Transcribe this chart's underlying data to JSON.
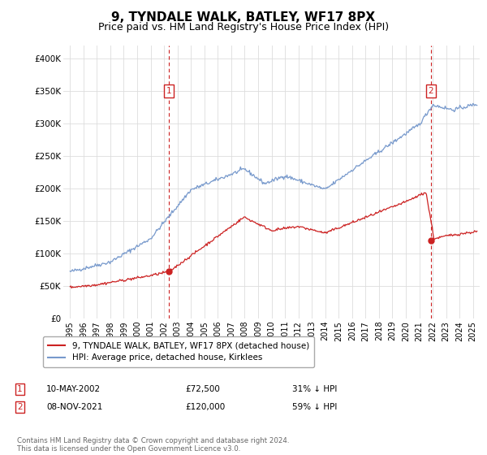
{
  "title": "9, TYNDALE WALK, BATLEY, WF17 8PX",
  "subtitle": "Price paid vs. HM Land Registry's House Price Index (HPI)",
  "title_fontsize": 11,
  "subtitle_fontsize": 9,
  "ylabel_ticks": [
    "£0",
    "£50K",
    "£100K",
    "£150K",
    "£200K",
    "£250K",
    "£300K",
    "£350K",
    "£400K"
  ],
  "ytick_values": [
    0,
    50000,
    100000,
    150000,
    200000,
    250000,
    300000,
    350000,
    400000
  ],
  "ylim": [
    0,
    420000
  ],
  "xlim_start": 1994.5,
  "xlim_end": 2025.5,
  "hpi_color": "#7799cc",
  "price_color": "#cc2222",
  "marker1_x": 2002.36,
  "marker1_y": 72500,
  "marker2_x": 2021.85,
  "marker2_y": 120000,
  "legend_line1": "9, TYNDALE WALK, BATLEY, WF17 8PX (detached house)",
  "legend_line2": "HPI: Average price, detached house, Kirklees",
  "footer": "Contains HM Land Registry data © Crown copyright and database right 2024.\nThis data is licensed under the Open Government Licence v3.0.",
  "vline1_x": 2002.36,
  "vline2_x": 2021.85,
  "background_color": "#ffffff",
  "grid_color": "#dddddd",
  "box1_label": "1",
  "box2_label": "2",
  "row1_date": "10-MAY-2002",
  "row1_price": "£72,500",
  "row1_pct": "31% ↓ HPI",
  "row2_date": "08-NOV-2021",
  "row2_price": "£120,000",
  "row2_pct": "59% ↓ HPI"
}
